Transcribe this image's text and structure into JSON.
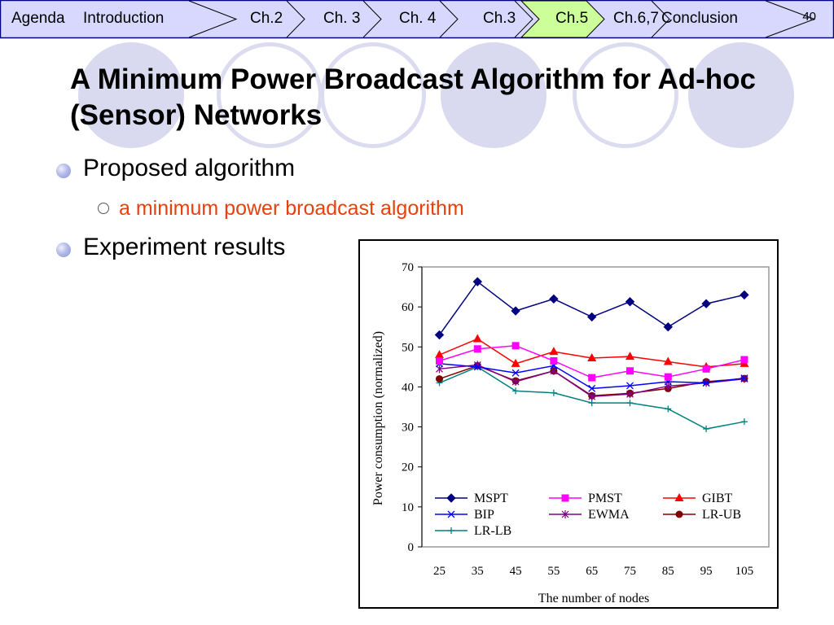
{
  "nav": {
    "items": [
      "Agenda",
      "Introduction",
      "Ch.2",
      "Ch. 3",
      "Ch. 4",
      "Ch.3",
      "Ch.5",
      "Ch.6,7",
      "Conclusion"
    ],
    "active": "Ch.5",
    "page_number": "40",
    "colors": {
      "bar": "#d8d8ff",
      "active": "#ccff99",
      "border": "#000080"
    }
  },
  "slide": {
    "title": "A Minimum Power Broadcast Algorithm for Ad-hoc (Sensor) Networks",
    "bullets": [
      {
        "text": "Proposed algorithm",
        "sub": [
          "a minimum power broadcast algorithm"
        ]
      },
      {
        "text": "Experiment results"
      }
    ],
    "sub_color": "#e8400c"
  },
  "chart_data": {
    "type": "line",
    "xlabel": "The number of nodes",
    "ylabel": "Power consumption (normalized)",
    "x": [
      25,
      35,
      45,
      55,
      65,
      75,
      85,
      95,
      105
    ],
    "ylim": [
      0,
      70
    ],
    "yticks": [
      0,
      10,
      20,
      30,
      40,
      50,
      60,
      70
    ],
    "grid": false,
    "legend_position": "bottom-left inside plot",
    "series": [
      {
        "name": "MSPT",
        "color": "#000080",
        "marker": "diamond",
        "values": [
          53,
          66.3,
          59,
          62,
          57.5,
          61.3,
          55,
          60.8,
          63
        ]
      },
      {
        "name": "PMST",
        "color": "#ff00ff",
        "marker": "square",
        "values": [
          46.5,
          49.5,
          50.3,
          46.5,
          42.3,
          44,
          42.5,
          44.5,
          46.8
        ]
      },
      {
        "name": "GIBT",
        "color": "#ff0000",
        "marker": "triangle",
        "values": [
          48,
          52,
          45.8,
          48.8,
          47.2,
          47.6,
          46.3,
          45,
          45.8
        ]
      },
      {
        "name": "BIP",
        "color": "#0000ff",
        "marker": "x",
        "values": [
          45.8,
          45,
          43.5,
          45.3,
          39.6,
          40.3,
          41.3,
          41,
          42.2
        ]
      },
      {
        "name": "EWMA",
        "color": "#800080",
        "marker": "star",
        "values": [
          44.5,
          45.5,
          41.3,
          44,
          37.6,
          38.2,
          40.2,
          41,
          42
        ]
      },
      {
        "name": "LR-UB",
        "color": "#800000",
        "marker": "circle",
        "values": [
          42,
          45.3,
          41.5,
          44,
          37.8,
          38.4,
          39.6,
          41.3,
          42.1
        ]
      },
      {
        "name": "LR-LB",
        "color": "#008080",
        "marker": "plus",
        "values": [
          41,
          45,
          39,
          38.5,
          36,
          36,
          34.5,
          29.5,
          31.3
        ]
      }
    ]
  }
}
